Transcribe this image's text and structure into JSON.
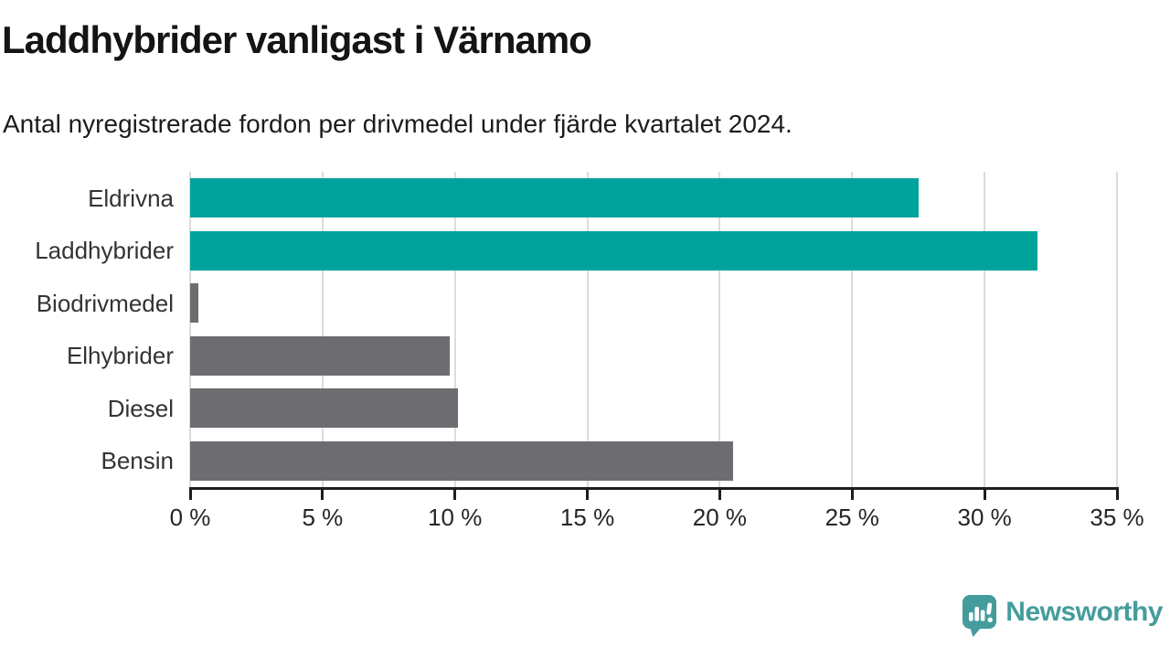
{
  "header": {
    "title": "Laddhybrider vanligast i Värnamo",
    "subtitle": "Antal nyregistrerade fordon per drivmedel under fjärde kvartalet 2024."
  },
  "chart_data": {
    "type": "bar",
    "orientation": "horizontal",
    "categories": [
      "Eldrivna",
      "Laddhybrider",
      "Biodrivmedel",
      "Elhybrider",
      "Diesel",
      "Bensin"
    ],
    "values": [
      27.5,
      32.0,
      0.3,
      9.8,
      10.1,
      20.5
    ],
    "unit": "%",
    "xlim": [
      0,
      35
    ],
    "x_ticks": [
      0,
      5,
      10,
      15,
      20,
      25,
      30,
      35
    ],
    "x_tick_labels": [
      "0 %",
      "5 %",
      "10 %",
      "15 %",
      "20 %",
      "25 %",
      "30 %",
      "35 %"
    ],
    "grid": "vertical-only",
    "legend": "none",
    "highlight_color": "#00a39b",
    "default_color": "#6c6c71",
    "bar_colors": [
      "#00a39b",
      "#00a39b",
      "#6c6c71",
      "#6c6c71",
      "#6c6c71",
      "#6c6c71"
    ]
  },
  "footer": {
    "brand": "Newsworthy",
    "brand_color": "#459c9c",
    "logo_icon": "speech-bubble-bar-chart-icon"
  }
}
